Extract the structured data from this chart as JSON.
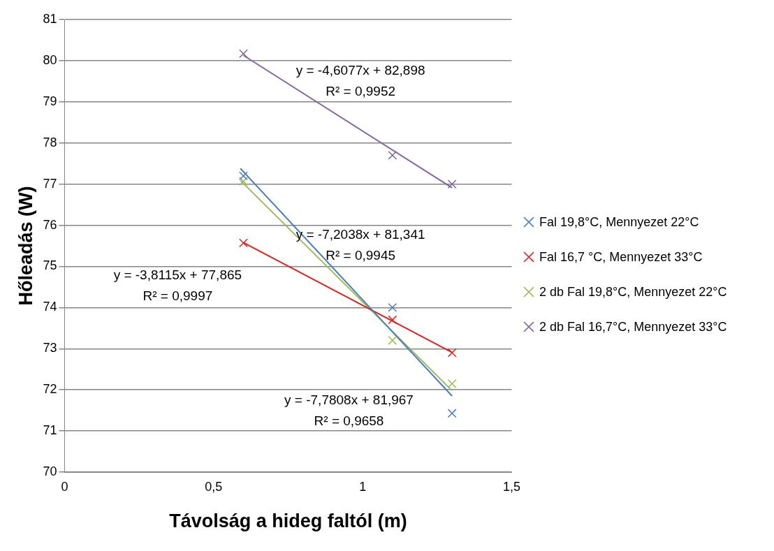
{
  "chart_data": {
    "type": "scatter",
    "xlabel": "Távolság a hideg faltól (m)",
    "ylabel": "Hőleadás (W)",
    "xlim": [
      0,
      1.5
    ],
    "xticks": [
      0,
      {
        "value": 0.5,
        "label": "0,5"
      },
      1,
      {
        "value": 1.5,
        "label": "1,5"
      }
    ],
    "ylim": [
      70,
      81
    ],
    "yticks": [
      70,
      71,
      72,
      73,
      74,
      75,
      76,
      77,
      78,
      79,
      80,
      81
    ],
    "grid": "y",
    "legend": "right",
    "marker": "cross",
    "series": [
      {
        "name": "Fal 19,8°C, Mennyezet 22°C",
        "color": "#4a7ebb",
        "x": [
          0.6,
          1.1,
          1.3
        ],
        "values": [
          77.2,
          74.0,
          71.43
        ]
      },
      {
        "name": "Fal 16,7 °C, Mennyezet 33°C",
        "color": "#e0201b",
        "x": [
          0.6,
          1.1,
          1.3
        ],
        "values": [
          75.57,
          73.7,
          72.9
        ]
      },
      {
        "name": "2 db Fal 19,8°C, Mennyezet 22°C",
        "color": "#9bbb59",
        "x": [
          0.6,
          1.1,
          1.3
        ],
        "values": [
          77.07,
          73.2,
          72.15
        ]
      },
      {
        "name": "2 db Fal 16,7°C, Mennyezet 33°C",
        "color": "#8064a2",
        "x": [
          0.6,
          1.1,
          1.3
        ],
        "values": [
          80.17,
          77.7,
          77.0
        ]
      },
      {
        "type": "line",
        "marker": "none",
        "color": "#4a7ebb",
        "x": [
          0.59,
          1.3
        ],
        "values": [
          77.38,
          71.85
        ]
      },
      {
        "type": "line",
        "marker": "none",
        "color": "#e0201b",
        "x": [
          0.6,
          1.3
        ],
        "values": [
          75.58,
          72.91
        ]
      },
      {
        "type": "line",
        "marker": "none",
        "color": "#9bbb59",
        "x": [
          0.59,
          1.3
        ],
        "values": [
          77.09,
          71.98
        ]
      },
      {
        "type": "line",
        "marker": "none",
        "color": "#8064a2",
        "x": [
          0.6,
          1.3
        ],
        "values": [
          80.13,
          76.91
        ]
      }
    ],
    "annotations": [
      "y = -4,6077x + 82,898\nR² = 0,9952",
      "y = -7,2038x + 81,341\nR² = 0,9945",
      "y = -3,8115x + 77,865\nR² = 0,9997",
      "y = -7,7808x + 81,967\nR² = 0,9658"
    ]
  }
}
